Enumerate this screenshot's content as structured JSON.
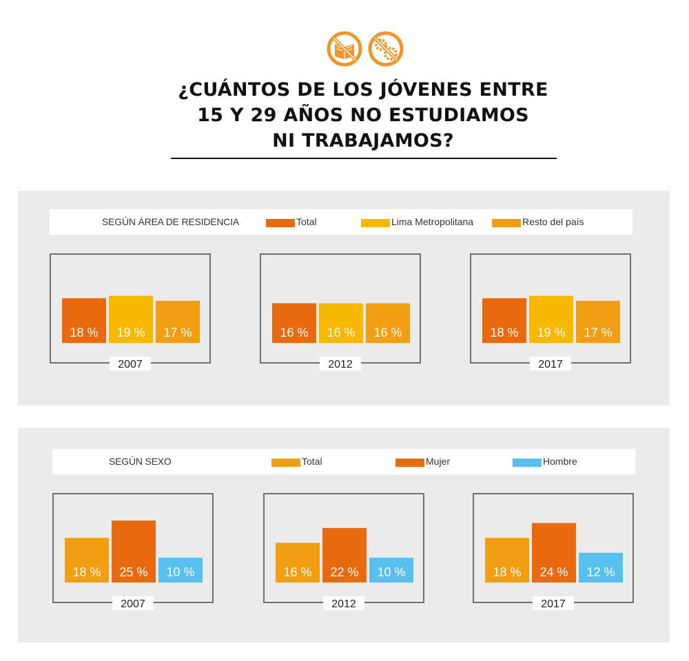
{
  "title_lines": [
    "¿CUÁNTOS DE LOS JÓVENES ENTRE",
    "15 Y 29 AÑOS NO ESTUDIAMOS",
    "NI TRABAJAMOS?"
  ],
  "icons": [
    "no-study-book-icon",
    "no-work-gears-icon"
  ],
  "colors": {
    "orange_dark": "#e8690e",
    "yellow": "#f8b800",
    "orange": "#f29e12",
    "blue": "#57c0ec",
    "icon_orange": "#f09628"
  },
  "sections": [
    {
      "legend_label": "SEGÚN ÁREA DE RESIDENCIA",
      "legend": [
        {
          "name": "Total",
          "color": "#e8690e"
        },
        {
          "name": "Lima Metropolitana",
          "color": "#f8b800"
        },
        {
          "name": "Resto del país",
          "color": "#f29e12"
        }
      ]
    },
    {
      "legend_label": "SEGÚN SEXO",
      "legend": [
        {
          "name": "Total",
          "color": "#f29e12"
        },
        {
          "name": "Mujer",
          "color": "#e8690e"
        },
        {
          "name": "Hombre",
          "color": "#57c0ec"
        }
      ]
    }
  ],
  "chart_data": [
    {
      "type": "bar",
      "title": "2007",
      "categories": [
        "Total",
        "Lima Metropolitana",
        "Resto del país"
      ],
      "values": [
        18,
        19,
        17
      ],
      "labels": [
        "18 %",
        "19 %",
        "17 %"
      ],
      "colors": [
        "#e8690e",
        "#f8b800",
        "#f29e12"
      ]
    },
    {
      "type": "bar",
      "title": "2012",
      "categories": [
        "Total",
        "Lima Metropolitana",
        "Resto del país"
      ],
      "values": [
        16,
        16,
        16
      ],
      "labels": [
        "16 %",
        "16 %",
        "16 %"
      ],
      "colors": [
        "#e8690e",
        "#f8b800",
        "#f29e12"
      ]
    },
    {
      "type": "bar",
      "title": "2017",
      "categories": [
        "Total",
        "Lima Metropolitana",
        "Resto del país"
      ],
      "values": [
        18,
        19,
        17
      ],
      "labels": [
        "18 %",
        "19 %",
        "17 %"
      ],
      "colors": [
        "#e8690e",
        "#f8b800",
        "#f29e12"
      ]
    },
    {
      "type": "bar",
      "title": "2007",
      "categories": [
        "Total",
        "Mujer",
        "Hombre"
      ],
      "values": [
        18,
        25,
        10
      ],
      "labels": [
        "18 %",
        "25 %",
        "10 %"
      ],
      "colors": [
        "#f29e12",
        "#e8690e",
        "#57c0ec"
      ]
    },
    {
      "type": "bar",
      "title": "2012",
      "categories": [
        "Total",
        "Mujer",
        "Hombre"
      ],
      "values": [
        16,
        22,
        10
      ],
      "labels": [
        "16 %",
        "22 %",
        "10 %"
      ],
      "colors": [
        "#f29e12",
        "#e8690e",
        "#57c0ec"
      ]
    },
    {
      "type": "bar",
      "title": "2017",
      "categories": [
        "Total",
        "Mujer",
        "Hombre"
      ],
      "values": [
        18,
        24,
        12
      ],
      "labels": [
        "18 %",
        "24 %",
        "12 %"
      ],
      "colors": [
        "#f29e12",
        "#e8690e",
        "#57c0ec"
      ]
    }
  ]
}
